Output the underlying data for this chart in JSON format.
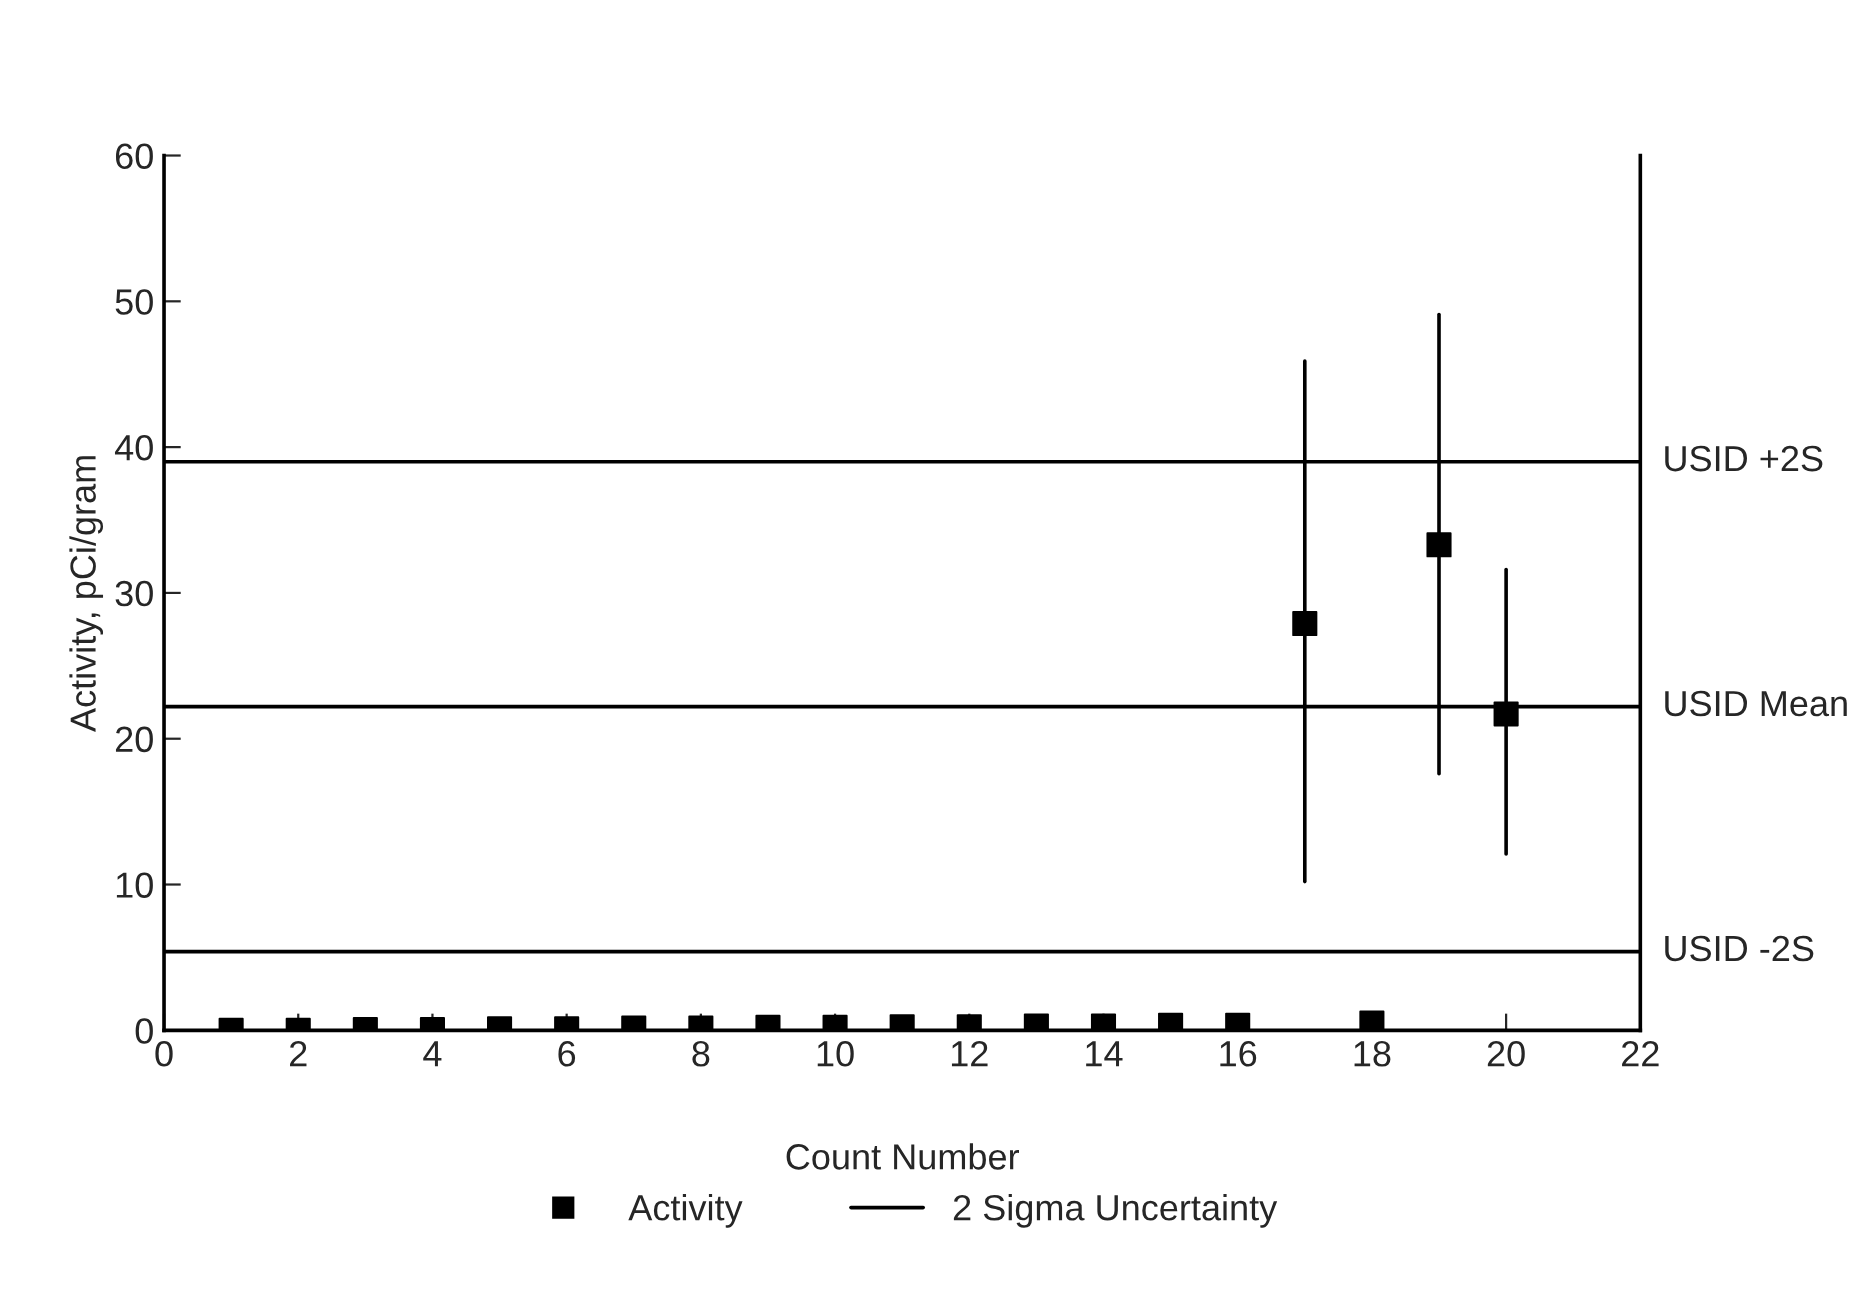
{
  "chart_data": {
    "type": "scatter",
    "xlabel": "Count Number",
    "ylabel": "Activity, pCi/gram",
    "x": [
      1,
      2,
      3,
      4,
      5,
      6,
      7,
      8,
      9,
      10,
      11,
      12,
      13,
      14,
      15,
      16,
      17,
      18,
      19,
      20
    ],
    "series": [
      {
        "name": "Activity",
        "color": "#000000",
        "marker": "square",
        "values": [
          0.0,
          0.0,
          0.05,
          0.05,
          0.1,
          0.1,
          0.15,
          0.15,
          0.2,
          0.2,
          0.25,
          0.25,
          0.3,
          0.3,
          0.35,
          0.35,
          27.9,
          0.5,
          33.3,
          21.7
        ],
        "errors": [
          null,
          null,
          null,
          null,
          null,
          null,
          null,
          null,
          null,
          null,
          null,
          null,
          null,
          null,
          null,
          null,
          [
            10.2,
            45.9
          ],
          null,
          [
            17.6,
            49.1
          ],
          [
            12.1,
            31.6
          ]
        ]
      }
    ],
    "annotations": [
      "2 Sigma Uncertainty"
    ],
    "ref_lines": [
      {
        "axis": "y",
        "value": 39,
        "label": "USID +2S",
        "color": "#000000"
      },
      {
        "axis": "y",
        "value": 22.2,
        "label": "USID Mean",
        "color": "#000000"
      },
      {
        "axis": "y",
        "value": 5.4,
        "label": "USID -2S",
        "color": "#000000"
      }
    ],
    "xlim": [
      0,
      22
    ],
    "xticks": [
      0,
      2,
      4,
      6,
      8,
      10,
      12,
      14,
      16,
      18,
      20,
      22
    ],
    "ylim": [
      0,
      60
    ],
    "yticks": [
      0,
      10,
      20,
      30,
      40,
      50,
      60
    ],
    "grid": false,
    "legend": "bottom"
  }
}
